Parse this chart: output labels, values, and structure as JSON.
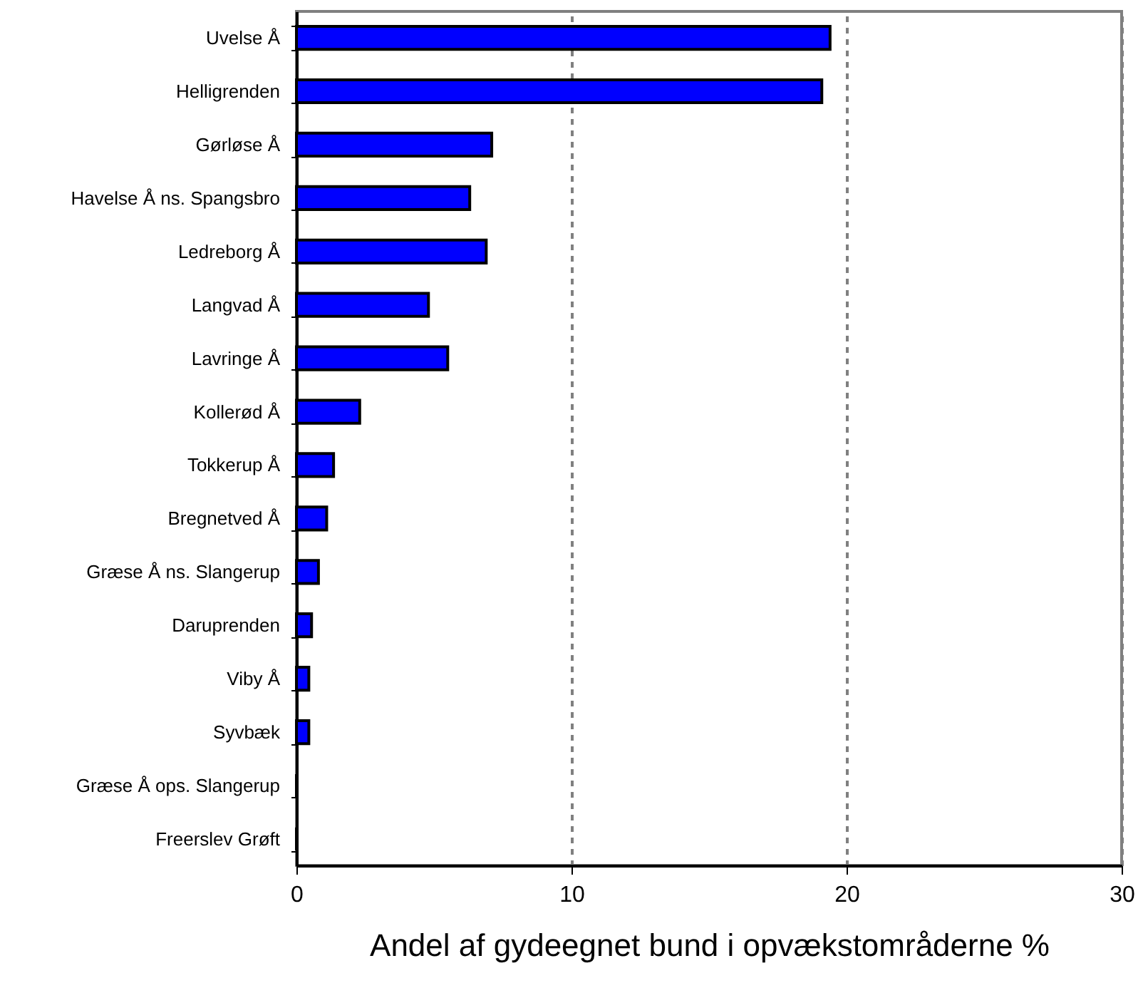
{
  "chart_data": {
    "type": "bar",
    "orientation": "horizontal",
    "xlabel": "Andel af gydeegnet bund i opvækstområderne %",
    "categories": [
      "Uvelse Å",
      "Helligrenden",
      "Gørløse Å",
      "Havelse Å ns. Spangsbro",
      "Ledreborg Å",
      "Langvad Å",
      "Lavringe Å",
      "Kollerød Å",
      "Tokkerup Å",
      "Bregnetved Å",
      "Græse Å ns. Slangerup",
      "Daruprenden",
      "Viby Å",
      "Syvbæk",
      "Græse Å ops. Slangerup",
      "Freerslev Grøft"
    ],
    "values": [
      19.4,
      19.1,
      7.1,
      6.3,
      6.9,
      4.8,
      5.5,
      2.3,
      1.35,
      1.1,
      0.8,
      0.55,
      0.45,
      0.45,
      0,
      0
    ],
    "color": "#0000ff",
    "xlim": [
      0,
      30
    ],
    "xticks": [
      0,
      10,
      20,
      30
    ],
    "grid": "x",
    "line_style": "dashed"
  }
}
